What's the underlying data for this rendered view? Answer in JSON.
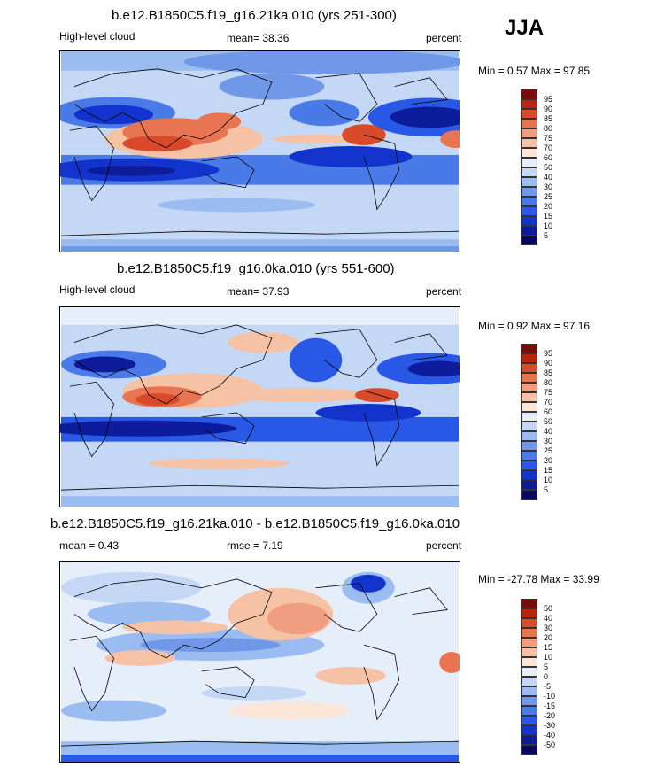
{
  "season": "JJA",
  "colors": {
    "full": [
      "#08085e",
      "#0c1c9a",
      "#1234cc",
      "#2a58e6",
      "#4a7ae8",
      "#6f98e8",
      "#9bbcf0",
      "#c4d8f6",
      "#e6eefa",
      "#fbe6d8",
      "#f6c2a6",
      "#f19e80",
      "#e87452",
      "#d94a2a",
      "#b82410",
      "#7f0a04"
    ],
    "diff": [
      "#08085e",
      "#0c1c9a",
      "#1234cc",
      "#2a58e6",
      "#4a7ae8",
      "#6f98e8",
      "#9bbcf0",
      "#c4d8f6",
      "#e6eefa",
      "#fbe6d8",
      "#f6c2a6",
      "#f19e80",
      "#e87452",
      "#d94a2a",
      "#b82410",
      "#7f0a04"
    ]
  },
  "chart_data": [
    {
      "type": "heatmap",
      "title": "b.e12.B1850C5.f19_g16.21ka.010 (yrs 251-300)",
      "left_label": "High-level cloud",
      "center_label": "mean=  38.36",
      "units": "percent",
      "minmax": "Min =   0.57 Max =  97.85",
      "levels": [
        "95",
        "90",
        "85",
        "80",
        "75",
        "70",
        "60",
        "50",
        "40",
        "30",
        "25",
        "20",
        "15",
        "10",
        "5"
      ],
      "field_mean": 38.36,
      "min": 0.57,
      "max": 97.85
    },
    {
      "type": "heatmap",
      "title": "b.e12.B1850C5.f19_g16.0ka.010 (yrs 551-600)",
      "left_label": "High-level cloud",
      "center_label": "mean=  37.93",
      "units": "percent",
      "minmax": "Min =   0.92 Max =  97.16",
      "levels": [
        "95",
        "90",
        "85",
        "80",
        "75",
        "70",
        "60",
        "50",
        "40",
        "30",
        "25",
        "20",
        "15",
        "10",
        "5"
      ],
      "field_mean": 37.93,
      "min": 0.92,
      "max": 97.16
    },
    {
      "type": "heatmap",
      "title": "b.e12.B1850C5.f19_g16.21ka.010 - b.e12.B1850C5.f19_g16.0ka.010",
      "left_label": "mean =   0.43",
      "center_label": "rmse =   7.19",
      "units": "percent",
      "minmax": "Min = -27.78 Max =  33.99",
      "levels": [
        "50",
        "40",
        "30",
        "20",
        "15",
        "10",
        "5",
        "0",
        "-5",
        "-10",
        "-15",
        "-20",
        "-30",
        "-40",
        "-50"
      ],
      "field_mean": 0.43,
      "rmse": 7.19,
      "min": -27.78,
      "max": 33.99
    }
  ]
}
